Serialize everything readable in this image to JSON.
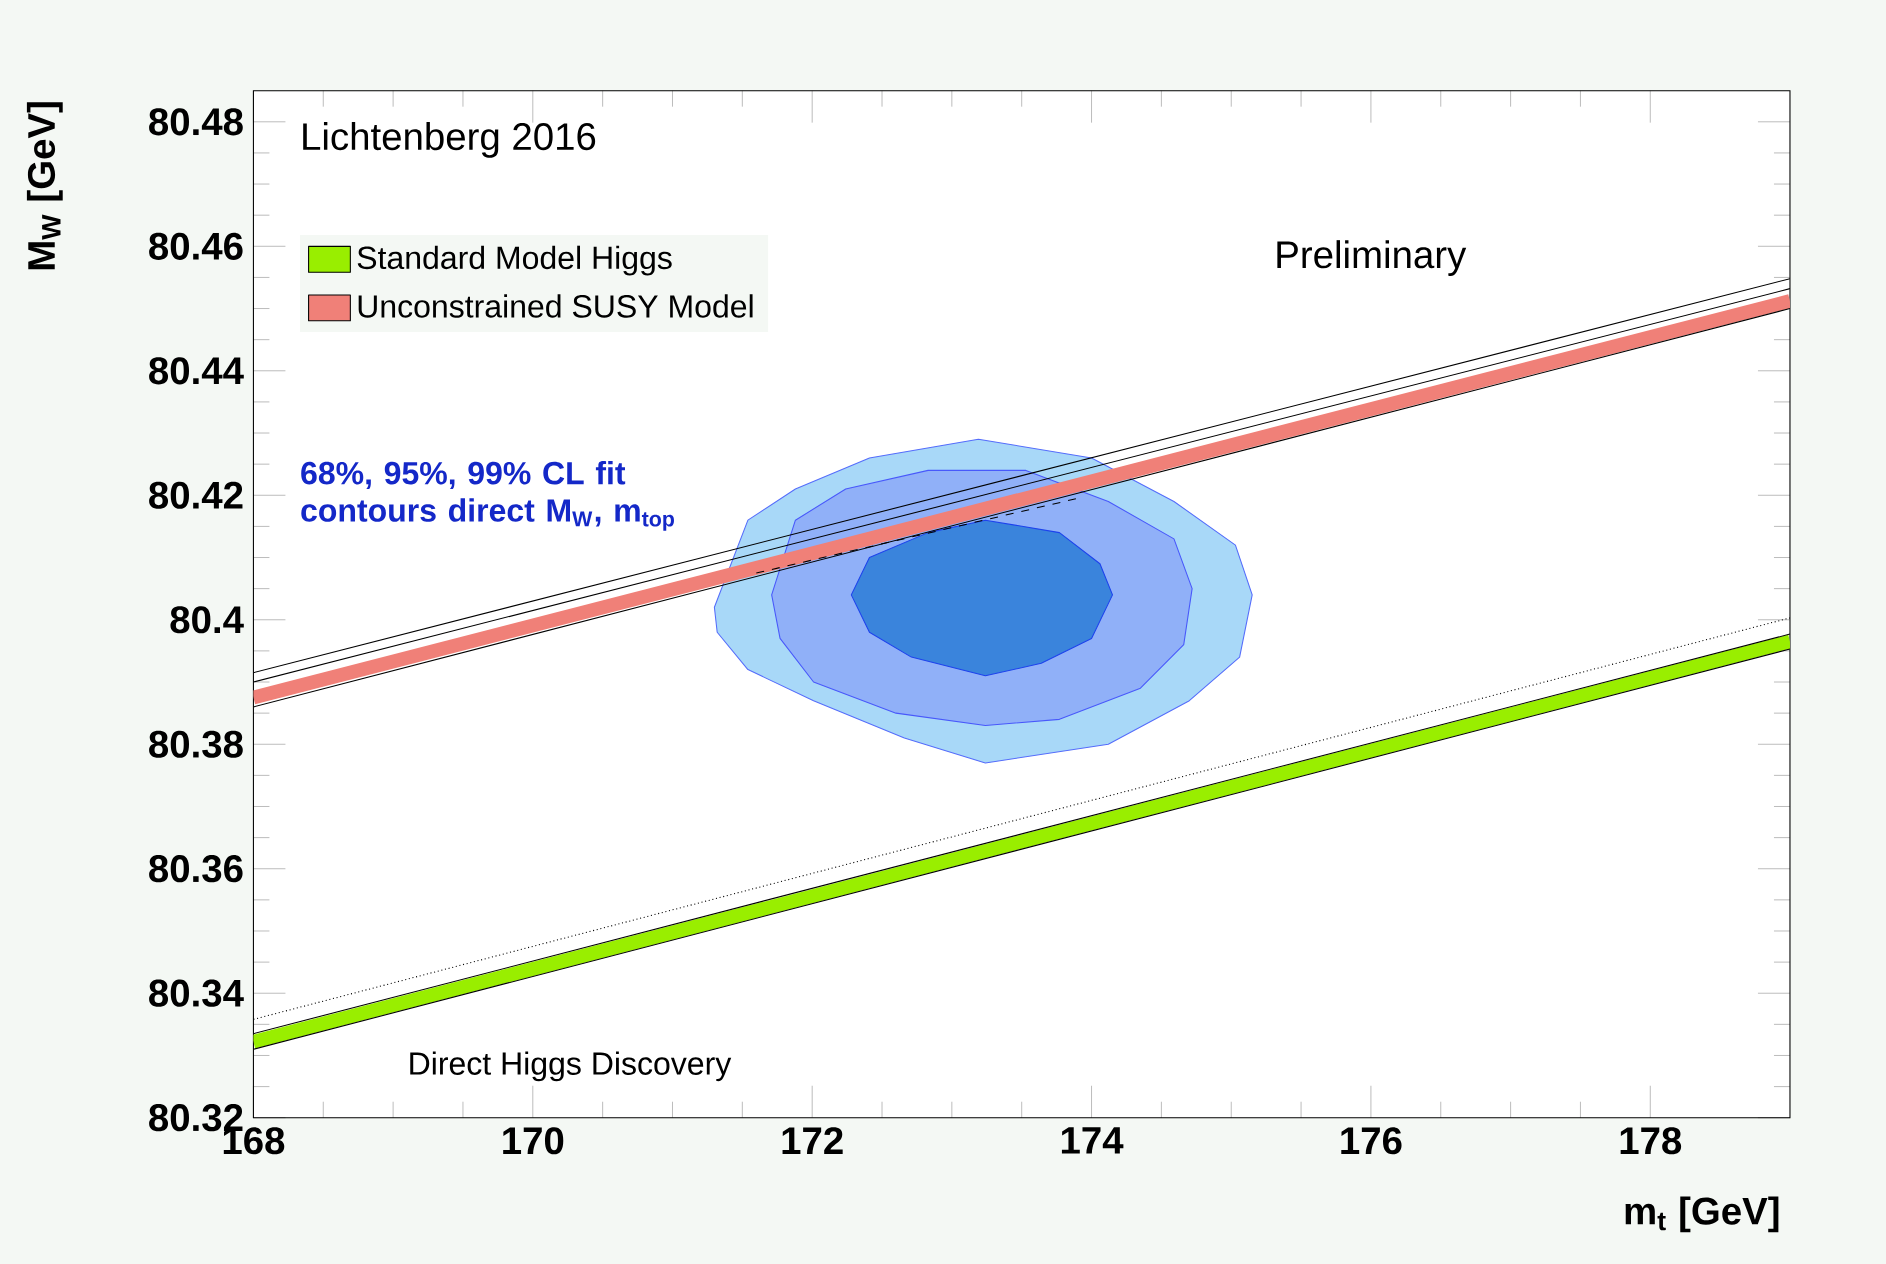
{
  "chart_data": {
    "type": "line",
    "xlabel": "m$_{t}$ [GeV]",
    "ylabel": "M$_{W}$ [GeV]",
    "xlim": [
      168,
      179
    ],
    "ylim": [
      80.32,
      80.485
    ],
    "xticks": [
      168,
      170,
      172,
      174,
      176,
      178
    ],
    "yticks": [
      80.32,
      80.34,
      80.36,
      80.38,
      80.4,
      80.42,
      80.44,
      80.46,
      80.48
    ],
    "legend": "top left",
    "annotations": [
      "Lichtenberg 2016",
      "Preliminary",
      "68%, 95%, 99% CL fit contours direct M$_{W}$, m$_{top}$",
      "Direct Higgs Discovery"
    ],
    "series": [
      {
        "type": "area",
        "color": "#a8d8f8",
        "x": [
          171.3,
          171.54,
          171.88,
          172.41,
          173.19,
          174.0,
          174.59,
          175.03,
          175.15,
          175.06,
          174.7,
          174.12,
          173.24,
          172.66,
          172.01,
          171.54,
          171.32
        ],
        "values": [
          80.402,
          80.416,
          80.421,
          80.426,
          80.429,
          80.426,
          80.419,
          80.412,
          80.404,
          80.394,
          80.387,
          80.38,
          80.377,
          80.381,
          80.387,
          80.392,
          80.398
        ]
      },
      {
        "type": "area",
        "color": "#90b0f8",
        "x": [
          171.71,
          171.88,
          172.24,
          172.83,
          173.53,
          174.12,
          174.59,
          174.72,
          174.66,
          174.35,
          173.77,
          173.24,
          172.6,
          172.01,
          171.77
        ],
        "values": [
          80.404,
          80.416,
          80.421,
          80.424,
          80.424,
          80.419,
          80.413,
          80.405,
          80.396,
          80.389,
          80.384,
          80.383,
          80.385,
          80.39,
          80.397
        ]
      },
      {
        "type": "area",
        "color": "#3a84dc",
        "x": [
          172.28,
          172.41,
          172.83,
          173.24,
          173.77,
          174.06,
          174.15,
          174.0,
          173.64,
          173.24,
          172.71,
          172.41
        ],
        "values": [
          80.404,
          80.41,
          80.414,
          80.416,
          80.414,
          80.409,
          80.404,
          80.397,
          80.393,
          80.391,
          80.394,
          80.398
        ]
      },
      {
        "name": "Standard Model Higgs",
        "color": "#99ee00",
        "x": [
          168,
          179
        ],
        "values": [
          80.3322,
          80.3965
        ]
      },
      {
        "color": "#000000",
        "x": [
          168,
          179
        ],
        "values": [
          80.331,
          80.3953
        ]
      },
      {
        "color": "#000000",
        "x": [
          168,
          179
        ],
        "values": [
          80.3335,
          80.3977
        ]
      },
      {
        "color": "#000000",
        "line_style": "dotted",
        "x": [
          168,
          179
        ],
        "values": [
          80.3358,
          80.4003
        ]
      },
      {
        "name": "Unconstrained SUSY Model",
        "color": "#f08078",
        "x": [
          168,
          179
        ],
        "values": [
          80.3875,
          80.4512
        ]
      },
      {
        "color": "#000000",
        "x": [
          168,
          179
        ],
        "values": [
          80.386,
          80.45
        ]
      },
      {
        "color": "#000000",
        "x": [
          168,
          179
        ],
        "values": [
          80.39,
          80.4532
        ]
      },
      {
        "color": "#000000",
        "x": [
          168,
          179
        ],
        "values": [
          80.3915,
          80.4548
        ]
      },
      {
        "color": "#000000",
        "line_style": "dashed",
        "x": [
          171.6,
          173.9
        ],
        "values": [
          80.4075,
          80.4195
        ]
      }
    ]
  }
}
